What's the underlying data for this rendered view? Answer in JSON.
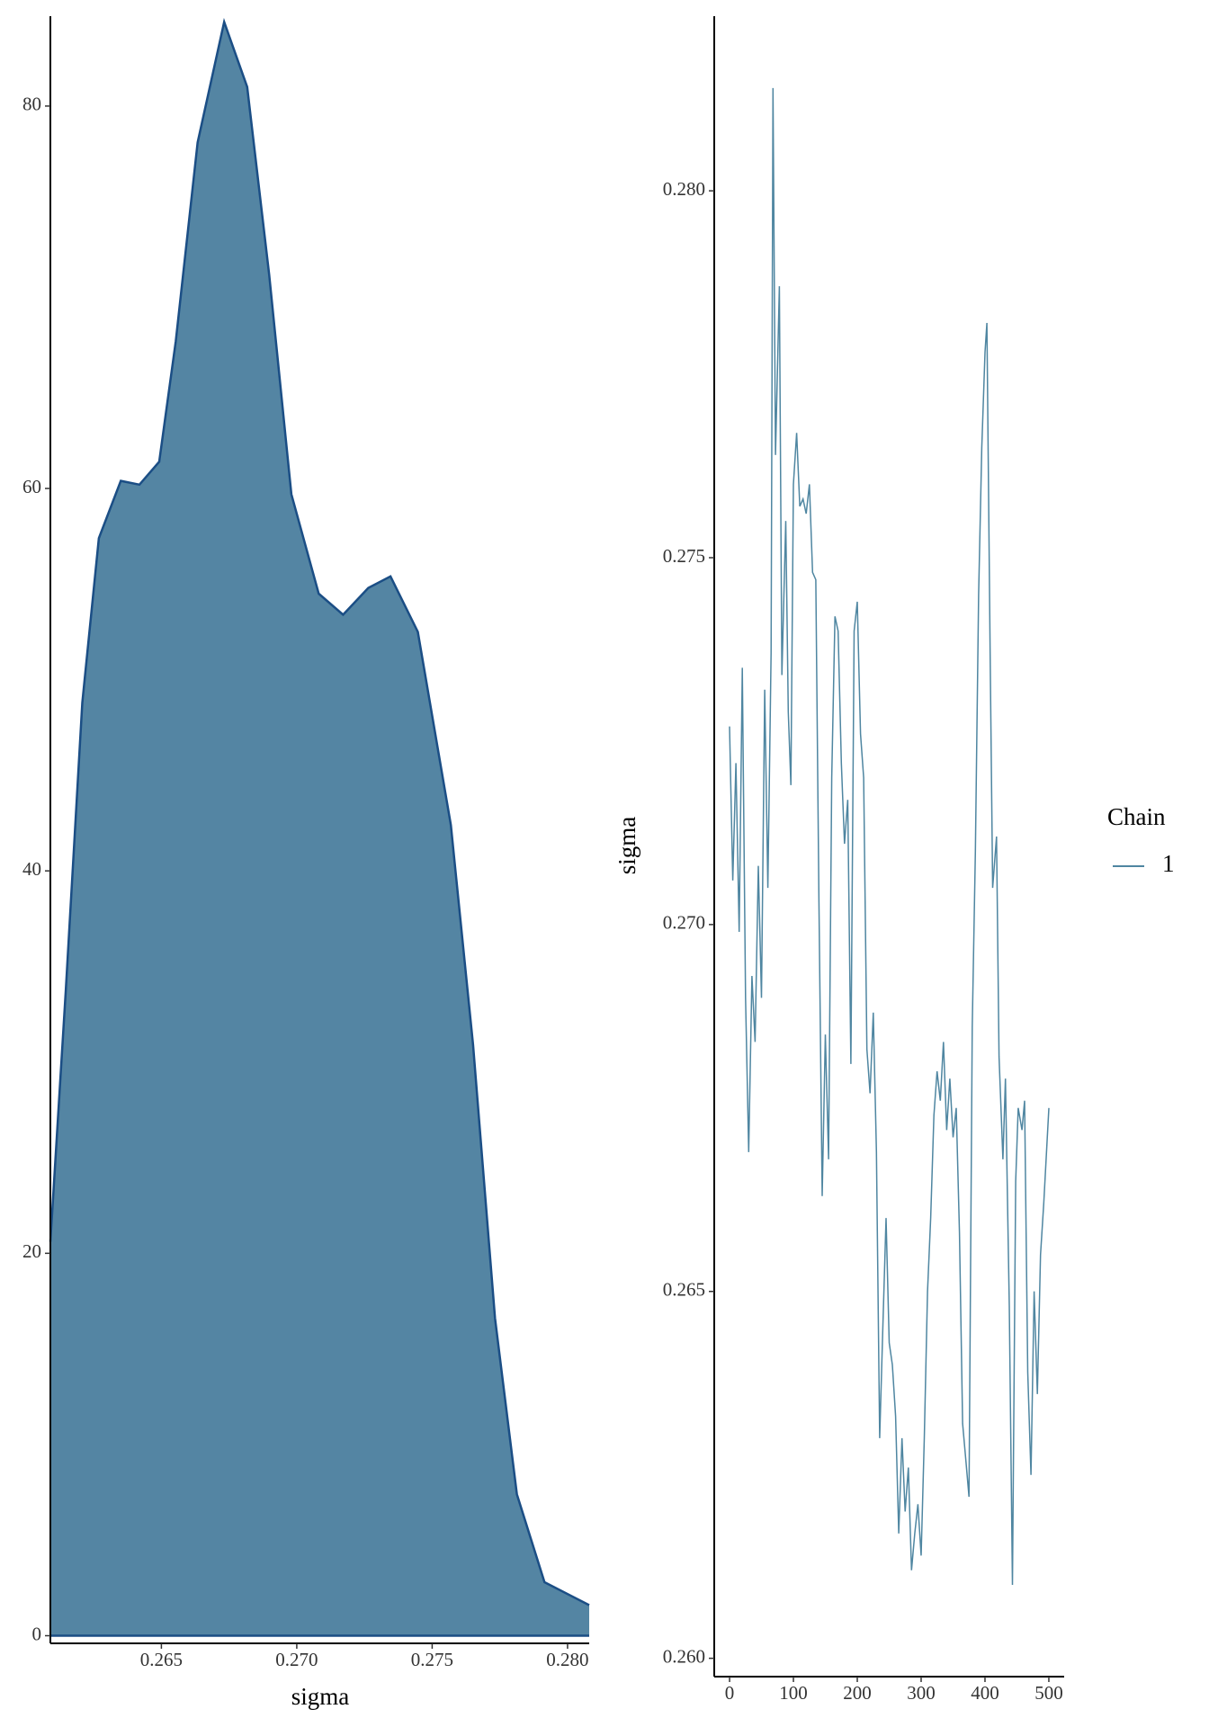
{
  "chart_data": [
    {
      "type": "area",
      "x_label": "sigma",
      "x": [
        0.2609,
        0.26147,
        0.26208,
        0.26269,
        0.2635,
        0.26419,
        0.26492,
        0.26553,
        0.26634,
        0.26732,
        0.26817,
        0.26898,
        0.2698,
        0.27081,
        0.27171,
        0.27264,
        0.27346,
        0.27447,
        0.27569,
        0.27651,
        0.27732,
        0.27813,
        0.27915,
        0.2808
      ],
      "values": [
        20.6,
        33.8,
        48.8,
        57.4,
        60.4,
        60.2,
        61.4,
        67.7,
        78.1,
        84.4,
        81.0,
        71.2,
        59.7,
        54.5,
        53.4,
        54.8,
        55.4,
        52.5,
        42.4,
        30.9,
        16.6,
        7.4,
        2.8,
        1.6
      ],
      "color": "#5485a3",
      "line_color": "#1b4e85",
      "xlim": [
        0.2609,
        0.2808
      ],
      "xticks": [
        {
          "value": 0.265,
          "label": "0.265"
        },
        {
          "value": 0.27,
          "label": "0.270"
        },
        {
          "value": 0.275,
          "label": "0.275"
        },
        {
          "value": 0.28,
          "label": "0.280"
        }
      ],
      "ylim": [
        -0.4,
        84.7
      ],
      "yticks": [
        0,
        20,
        40,
        60,
        80
      ]
    },
    {
      "type": "line",
      "y_label": "sigma",
      "legend_title": "Chain",
      "x": [
        0,
        5,
        10,
        15,
        20,
        25,
        30,
        35,
        40,
        45,
        50,
        55,
        60,
        65,
        68,
        72,
        78,
        82,
        88,
        92,
        96,
        100,
        105,
        110,
        115,
        120,
        125,
        130,
        135,
        140,
        145,
        150,
        155,
        160,
        165,
        170,
        175,
        180,
        185,
        190,
        195,
        200,
        205,
        210,
        215,
        220,
        225,
        230,
        235,
        240,
        245,
        250,
        255,
        260,
        265,
        270,
        275,
        280,
        285,
        290,
        295,
        300,
        305,
        310,
        315,
        320,
        325,
        330,
        335,
        340,
        345,
        350,
        355,
        360,
        365,
        370,
        375,
        380,
        385,
        390,
        395,
        400,
        403,
        408,
        412,
        418,
        422,
        428,
        432,
        438,
        443,
        448,
        452,
        458,
        462,
        467,
        472,
        477,
        482,
        487,
        492,
        497,
        500
      ],
      "series": [
        {
          "name": "1",
          "color": "#4f86a1",
          "values": [
            0.2727,
            0.2706,
            0.2722,
            0.2699,
            0.2735,
            0.269,
            0.2669,
            0.2693,
            0.2684,
            0.2708,
            0.269,
            0.2732,
            0.2705,
            0.2737,
            0.2814,
            0.2764,
            0.2787,
            0.2734,
            0.2755,
            0.2729,
            0.2719,
            0.276,
            0.2767,
            0.2757,
            0.2758,
            0.2756,
            0.276,
            0.2748,
            0.2747,
            0.2703,
            0.2663,
            0.2685,
            0.2668,
            0.272,
            0.2742,
            0.274,
            0.2722,
            0.2711,
            0.2717,
            0.2681,
            0.274,
            0.2744,
            0.2726,
            0.272,
            0.2683,
            0.2677,
            0.2688,
            0.2669,
            0.263,
            0.2645,
            0.266,
            0.2643,
            0.264,
            0.2633,
            0.2617,
            0.263,
            0.262,
            0.2626,
            0.2612,
            0.2617,
            0.2621,
            0.2614,
            0.263,
            0.265,
            0.266,
            0.2674,
            0.268,
            0.2676,
            0.2684,
            0.2672,
            0.2679,
            0.2671,
            0.2675,
            0.2658,
            0.2632,
            0.2627,
            0.2622,
            0.2686,
            0.271,
            0.2745,
            0.2765,
            0.2778,
            0.2782,
            0.2737,
            0.2705,
            0.2712,
            0.2682,
            0.2668,
            0.2679,
            0.2648,
            0.261,
            0.2665,
            0.2675,
            0.2672,
            0.2676,
            0.2639,
            0.2625,
            0.265,
            0.2636,
            0.2655,
            0.2662,
            0.267,
            0.2675
          ]
        }
      ],
      "xlim": [
        -24,
        524
      ],
      "xticks": [
        0,
        100,
        200,
        300,
        400,
        500
      ],
      "ylim": [
        0.25975,
        0.28238
      ],
      "yticks": [
        {
          "value": 0.26,
          "label": "0.260"
        },
        {
          "value": 0.265,
          "label": "0.265"
        },
        {
          "value": 0.27,
          "label": "0.270"
        },
        {
          "value": 0.275,
          "label": "0.275"
        },
        {
          "value": 0.28,
          "label": "0.280"
        }
      ]
    }
  ]
}
